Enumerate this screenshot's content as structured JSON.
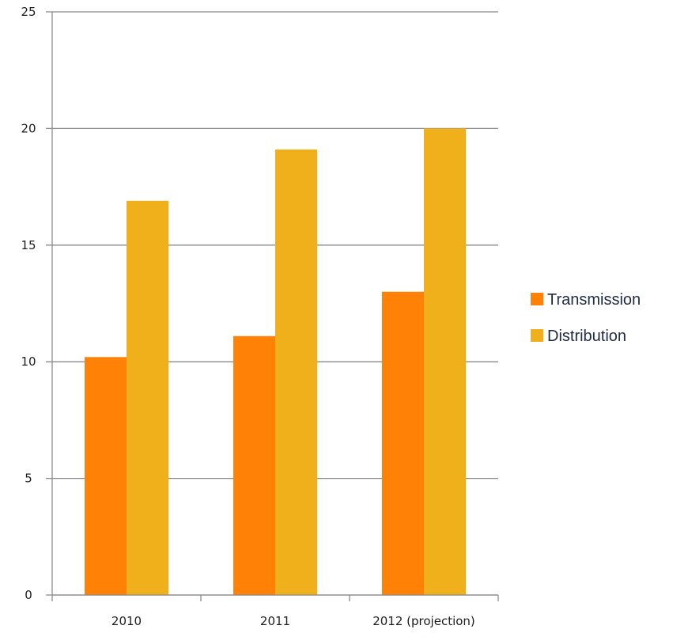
{
  "chart_data": {
    "type": "bar",
    "categories": [
      "2010",
      "2011",
      "2012 (projection)"
    ],
    "series": [
      {
        "name": "Transmission",
        "values": [
          10.2,
          11.1,
          13.0
        ],
        "color": "#ff8105"
      },
      {
        "name": "Distribution",
        "values": [
          16.9,
          19.1,
          20.0
        ],
        "color": "#f0b01b"
      }
    ],
    "title": "",
    "xlabel": "",
    "ylabel": "",
    "ylim": [
      0,
      25
    ],
    "yticks": [
      "0",
      "5",
      "10",
      "15",
      "20",
      "25"
    ],
    "grid": true,
    "legend": "right"
  }
}
